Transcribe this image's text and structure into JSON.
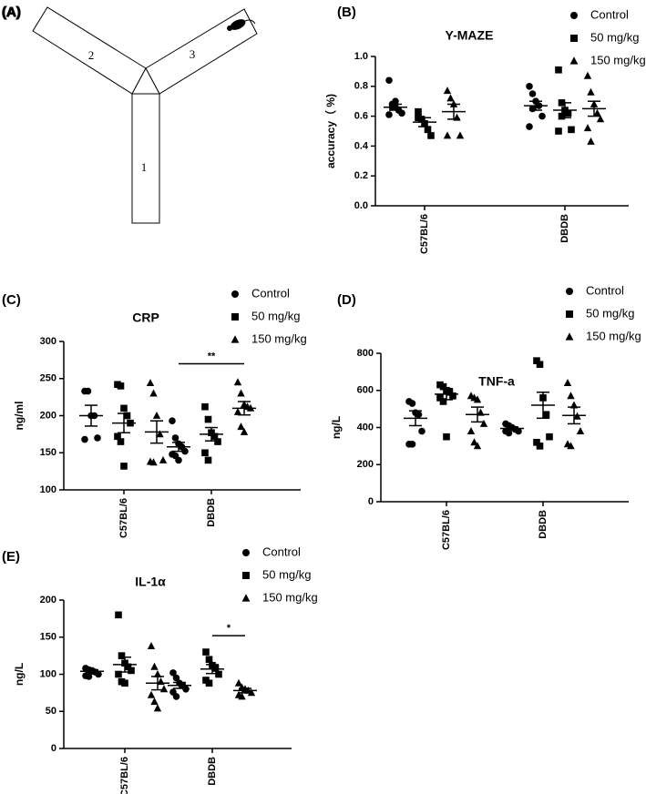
{
  "diagram": {
    "label": "(A)",
    "arms": [
      "1",
      "2",
      "3"
    ]
  },
  "chart_data": [
    {
      "type": "scatter",
      "panel_label": "(B)",
      "title": "Y-MAZE",
      "y_label": "accuracy（ %)",
      "categories": [
        "C57BL/6",
        "DBDB"
      ],
      "ylim": [
        0,
        1
      ],
      "yticks": [
        {
          "value": 0,
          "label": "0.0"
        },
        {
          "value": 0.2,
          "label": "0.2"
        },
        {
          "value": 0.4,
          "label": "0.4"
        },
        {
          "value": 0.6,
          "label": "0.6"
        },
        {
          "value": 0.8,
          "label": "0.8"
        },
        {
          "value": 1,
          "label": "1.0"
        }
      ],
      "series": [
        {
          "name": "Control",
          "marker": "circle",
          "color": "#000000",
          "values": [
            [
              0.84,
              0.68,
              0.66,
              0.64,
              0.62,
              0.61,
              0.66,
              0.7
            ],
            [
              0.8,
              0.75,
              0.7,
              0.67,
              0.6,
              0.53,
              0.65
            ]
          ],
          "mean": [
            0.66,
            0.67
          ],
          "sem": [
            0.02,
            0.03
          ]
        },
        {
          "name": "50 mg/kg",
          "marker": "square",
          "color": "#000000",
          "values": [
            [
              0.63,
              0.58,
              0.55,
              0.51,
              0.47,
              0.59
            ],
            [
              0.91,
              0.69,
              0.64,
              0.62,
              0.51,
              0.5,
              0.6
            ]
          ],
          "mean": [
            0.56,
            0.64
          ],
          "sem": [
            0.03,
            0.05
          ]
        },
        {
          "name": "150 mg/kg",
          "marker": "triangle",
          "color": "#000000",
          "values": [
            [
              0.77,
              0.72,
              0.68,
              0.59,
              0.47,
              0.47
            ],
            [
              0.87,
              0.76,
              0.68,
              0.62,
              0.58,
              0.52,
              0.43
            ]
          ],
          "mean": [
            0.63,
            0.65
          ],
          "sem": [
            0.05,
            0.05
          ]
        }
      ]
    },
    {
      "type": "scatter",
      "panel_label": "(C)",
      "title": "CRP",
      "y_label": "ng/ml",
      "categories": [
        "C57BL/6",
        "DBDB"
      ],
      "ylim": [
        100,
        300
      ],
      "yticks": [
        100,
        150,
        200,
        250,
        300
      ],
      "series": [
        {
          "name": "Control",
          "marker": "circle",
          "color": "#000000",
          "values": [
            [
              233,
              233,
              200,
              200,
              170,
              168
            ],
            [
              193,
              170,
              162,
              158,
              152,
              148,
              146,
              140
            ]
          ],
          "mean": [
            200,
            158
          ],
          "sem": [
            14,
            6
          ]
        },
        {
          "name": "50 mg/kg",
          "marker": "square",
          "color": "#000000",
          "values": [
            [
              242,
              240,
              210,
              200,
              190,
              172,
              165,
              132
            ],
            [
              212,
              195,
              177,
              172,
              165,
              150,
              140
            ]
          ],
          "mean": [
            190,
            175
          ],
          "sem": [
            13,
            9
          ]
        },
        {
          "name": "150 mg/kg",
          "marker": "triangle",
          "color": "#000000",
          "values": [
            [
              244,
              230,
              200,
              175,
              140,
              138,
              137
            ],
            [
              245,
              230,
              215,
              212,
              210,
              205,
              185,
              178
            ]
          ],
          "mean": [
            178,
            210
          ],
          "sem": [
            15,
            9
          ]
        }
      ],
      "annotations": [
        {
          "label": "**",
          "y": 270,
          "category": 1,
          "series": [
            0,
            2
          ]
        }
      ]
    },
    {
      "type": "scatter",
      "panel_label": "(D)",
      "title": "TNF-a",
      "y_label": "ng/L",
      "categories": [
        "C57BL/6",
        "DBDB"
      ],
      "ylim": [
        0,
        800
      ],
      "yticks": [
        0,
        200,
        400,
        600,
        800
      ],
      "series": [
        {
          "name": "Control",
          "marker": "circle",
          "color": "#000000",
          "values": [
            [
              540,
              530,
              480,
              470,
              380,
              310,
              310
            ],
            [
              420,
              410,
              400,
              390,
              380,
              380,
              370
            ]
          ],
          "mean": [
            450,
            395
          ],
          "sem": [
            40,
            8
          ]
        },
        {
          "name": "50 mg/kg",
          "marker": "square",
          "color": "#000000",
          "values": [
            [
              630,
              620,
              600,
              590,
              570,
              560,
              540,
              350
            ],
            [
              760,
              740,
              560,
              470,
              350,
              320,
              300
            ]
          ],
          "mean": [
            580,
            520
          ],
          "sem": [
            30,
            70
          ]
        },
        {
          "name": "150 mg/kg",
          "marker": "triangle",
          "color": "#000000",
          "values": [
            [
              570,
              560,
              550,
              480,
              420,
              380,
              320,
              300
            ],
            [
              640,
              570,
              520,
              460,
              380,
              310,
              300
            ]
          ],
          "mean": [
            470,
            465
          ],
          "sem": [
            40,
            45
          ]
        }
      ]
    },
    {
      "type": "scatter",
      "panel_label": "(E)",
      "title": "IL-1α",
      "y_label": "ng/L",
      "categories": [
        "C57BL/6",
        "DBDB"
      ],
      "ylim": [
        0,
        200
      ],
      "yticks": [
        0,
        50,
        100,
        150,
        200
      ],
      "series": [
        {
          "name": "Control",
          "marker": "circle",
          "color": "#000000",
          "values": [
            [
              108,
              106,
              105,
              103,
              100,
              98,
              97,
              104
            ],
            [
              102,
              95,
              88,
              85,
              80,
              76,
              70
            ]
          ],
          "mean": [
            104,
            85
          ],
          "sem": [
            2,
            4
          ]
        },
        {
          "name": "50 mg/kg",
          "marker": "square",
          "color": "#000000",
          "values": [
            [
              180,
              125,
              115,
              110,
              105,
              100,
              90,
              88
            ],
            [
              130,
              120,
              112,
              108,
              100,
              92,
              88
            ]
          ],
          "mean": [
            113,
            107
          ],
          "sem": [
            10,
            6
          ]
        },
        {
          "name": "150 mg/kg",
          "marker": "triangle",
          "color": "#000000",
          "values": [
            [
              138,
              110,
              100,
              90,
              80,
              72,
              63,
              54
            ],
            [
              88,
              82,
              80,
              78,
              75,
              72,
              70
            ]
          ],
          "mean": [
            88,
            78
          ],
          "sem": [
            9,
            3
          ]
        }
      ],
      "annotations": [
        {
          "label": "*",
          "y": 152,
          "category": 1,
          "series": [
            1,
            2
          ]
        }
      ]
    }
  ]
}
